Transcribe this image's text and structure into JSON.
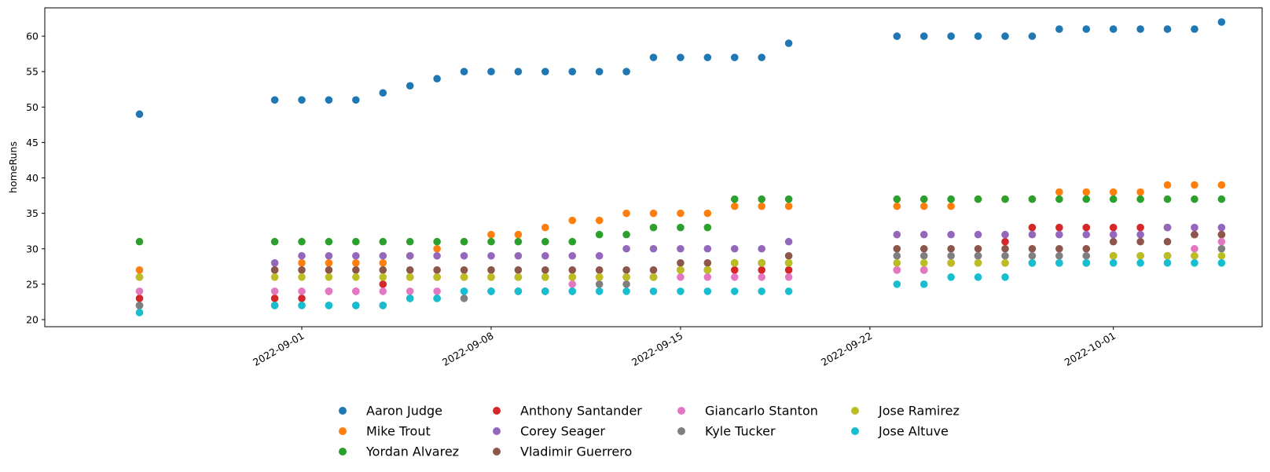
{
  "chart_data": {
    "type": "scatter",
    "ylabel": "homeRuns",
    "xlabel": "",
    "x_dates": [
      "2022-08-26",
      "2022-08-31",
      "2022-09-01",
      "2022-09-02",
      "2022-09-03",
      "2022-09-04",
      "2022-09-05",
      "2022-09-06",
      "2022-09-07",
      "2022-09-08",
      "2022-09-09",
      "2022-09-10",
      "2022-09-11",
      "2022-09-12",
      "2022-09-13",
      "2022-09-14",
      "2022-09-15",
      "2022-09-16",
      "2022-09-17",
      "2022-09-18",
      "2022-09-19",
      "2022-09-23",
      "2022-09-24",
      "2022-09-25",
      "2022-09-26",
      "2022-09-27",
      "2022-09-28",
      "2022-09-29",
      "2022-09-30",
      "2022-10-01",
      "2022-10-02",
      "2022-10-03",
      "2022-10-04",
      "2022-10-05"
    ],
    "xlim": [
      "2022-08-22T12:00",
      "2022-10-06T12:00"
    ],
    "ylim": [
      19,
      64
    ],
    "x_ticks": [
      "2022-09-01",
      "2022-09-08",
      "2022-09-15",
      "2022-09-22",
      "2022-10-01"
    ],
    "y_ticks": [
      20,
      25,
      30,
      35,
      40,
      45,
      50,
      55,
      60
    ],
    "legend_position": "bottom-center",
    "series": [
      {
        "name": "Aaron Judge",
        "color": "#1f77b4",
        "values": [
          49,
          51,
          51,
          51,
          51,
          52,
          53,
          54,
          55,
          55,
          55,
          55,
          55,
          55,
          55,
          57,
          57,
          57,
          57,
          57,
          59,
          60,
          60,
          60,
          60,
          60,
          60,
          61,
          61,
          61,
          61,
          61,
          61,
          62
        ]
      },
      {
        "name": "Mike Trout",
        "color": "#ff7f0e",
        "values": [
          27,
          27,
          28,
          28,
          28,
          28,
          29,
          30,
          31,
          32,
          32,
          33,
          34,
          34,
          35,
          35,
          35,
          35,
          36,
          36,
          36,
          36,
          36,
          36,
          37,
          37,
          37,
          38,
          38,
          38,
          38,
          39,
          39,
          39
        ]
      },
      {
        "name": "Yordan Alvarez",
        "color": "#2ca02c",
        "values": [
          31,
          31,
          31,
          31,
          31,
          31,
          31,
          31,
          31,
          31,
          31,
          31,
          31,
          32,
          32,
          33,
          33,
          33,
          37,
          37,
          37,
          37,
          37,
          37,
          37,
          37,
          37,
          37,
          37,
          37,
          37,
          37,
          37,
          37
        ]
      },
      {
        "name": "Anthony Santander",
        "color": "#d62728",
        "values": [
          23,
          23,
          23,
          24,
          24,
          25,
          26,
          26,
          26,
          26,
          26,
          26,
          26,
          26,
          26,
          26,
          27,
          27,
          27,
          27,
          27,
          27,
          27,
          28,
          29,
          31,
          33,
          33,
          33,
          33,
          33,
          33,
          32,
          32
        ]
      },
      {
        "name": "Corey Seager",
        "color": "#9467bd",
        "values": [
          26,
          28,
          29,
          29,
          29,
          29,
          29,
          29,
          29,
          29,
          29,
          29,
          29,
          29,
          30,
          30,
          30,
          30,
          30,
          30,
          31,
          32,
          32,
          32,
          32,
          32,
          32,
          32,
          32,
          32,
          32,
          33,
          33,
          33
        ]
      },
      {
        "name": "Vladimir Guerrero",
        "color": "#8c564b",
        "values": [
          22,
          27,
          27,
          27,
          27,
          27,
          27,
          27,
          27,
          27,
          27,
          27,
          27,
          27,
          27,
          27,
          28,
          28,
          28,
          28,
          29,
          30,
          30,
          30,
          30,
          30,
          30,
          30,
          30,
          31,
          31,
          31,
          32,
          32
        ]
      },
      {
        "name": "Giancarlo Stanton",
        "color": "#e377c2",
        "values": [
          24,
          24,
          24,
          24,
          24,
          24,
          24,
          24,
          24,
          24,
          24,
          24,
          25,
          26,
          26,
          26,
          26,
          26,
          26,
          26,
          26,
          27,
          27,
          28,
          28,
          28,
          28,
          28,
          28,
          29,
          29,
          29,
          30,
          31
        ]
      },
      {
        "name": "Kyle Tucker",
        "color": "#7f7f7f",
        "values": [
          22,
          22,
          22,
          22,
          22,
          22,
          23,
          23,
          23,
          24,
          24,
          24,
          24,
          25,
          25,
          26,
          27,
          27,
          28,
          28,
          28,
          29,
          29,
          29,
          29,
          29,
          29,
          29,
          29,
          29,
          29,
          29,
          29,
          30
        ]
      },
      {
        "name": "Jose Ramirez",
        "color": "#bcbd22",
        "values": [
          26,
          26,
          26,
          26,
          26,
          26,
          26,
          26,
          26,
          26,
          26,
          26,
          26,
          26,
          26,
          26,
          27,
          27,
          28,
          28,
          28,
          28,
          28,
          28,
          28,
          28,
          28,
          28,
          28,
          29,
          29,
          29,
          29,
          29
        ]
      },
      {
        "name": "Jose Altuve",
        "color": "#17becf",
        "values": [
          21,
          22,
          22,
          22,
          22,
          22,
          23,
          23,
          24,
          24,
          24,
          24,
          24,
          24,
          24,
          24,
          24,
          24,
          24,
          24,
          24,
          25,
          25,
          26,
          26,
          26,
          28,
          28,
          28,
          28,
          28,
          28,
          28,
          28
        ]
      }
    ]
  }
}
